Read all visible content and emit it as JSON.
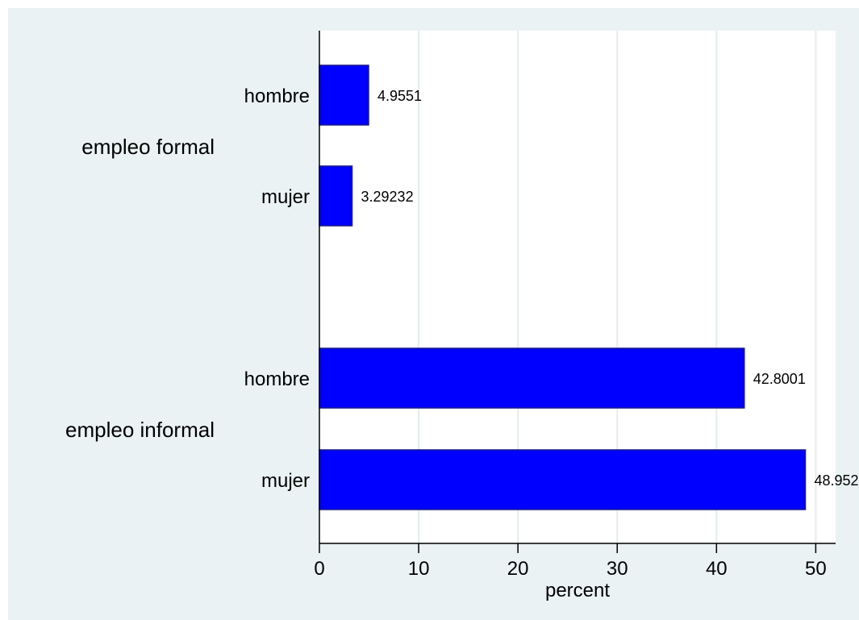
{
  "chart_data": {
    "type": "bar",
    "orientation": "horizontal",
    "title": "",
    "xlabel": "percent",
    "ylabel": "",
    "xlim": [
      0,
      52
    ],
    "xticks": [
      0,
      10,
      20,
      30,
      40,
      50
    ],
    "grid": "vertical",
    "groups": [
      {
        "name": "empleo formal",
        "bars": [
          {
            "label": "hombre",
            "value": 4.9551,
            "value_label": "4.9551"
          },
          {
            "label": "mujer",
            "value": 3.29232,
            "value_label": "3.29232"
          }
        ]
      },
      {
        "name": "empleo informal",
        "bars": [
          {
            "label": "hombre",
            "value": 42.8001,
            "value_label": "42.8001"
          },
          {
            "label": "mujer",
            "value": 48.952,
            "value_label": "48.952"
          }
        ]
      }
    ],
    "colors": {
      "bar_fill": "#0000ff",
      "bar_stroke": "#1a1a8c",
      "plot_background": "#ffffff",
      "outer_background": "#eaf2f3",
      "grid": "#e3edef"
    }
  }
}
